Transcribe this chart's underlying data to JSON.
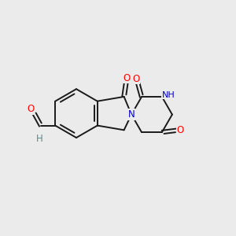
{
  "background_color": "#ebebeb",
  "bond_color": "#1a1a1a",
  "atom_colors": {
    "O": "#ff0000",
    "N": "#0000cc",
    "H": "#5a8a8a",
    "C": "#1a1a1a"
  },
  "figsize": [
    3.0,
    3.0
  ],
  "dpi": 100
}
